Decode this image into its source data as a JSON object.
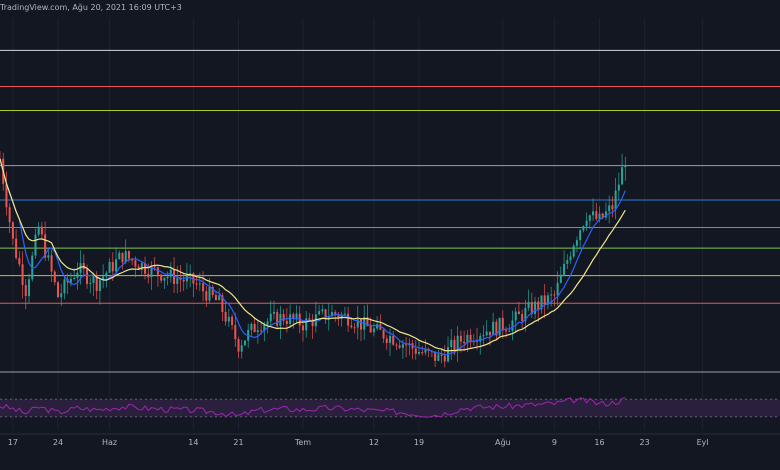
{
  "caption": "TradingView.com, Ağu 20, 2021 16:09 UTC+3",
  "colors": {
    "background": "#131722",
    "grid": "#1e2230",
    "candle_up": "#26a69a",
    "candle_down": "#ef5350",
    "ma_fast": "#2962ff",
    "ma_slow": "#f0e68c",
    "rsi_line": "#9c27b0",
    "rsi_band": "#2a1f3d"
  },
  "chart_data": {
    "type": "candlestick",
    "x_axis": {
      "tick_labels": [
        "17",
        "24",
        "Haz",
        "14",
        "21",
        "Tem",
        "12",
        "19",
        "Ağu",
        "9",
        "16",
        "23",
        "Eyl"
      ],
      "range_start": "2021-05-15",
      "range_end": "2021-09-13"
    },
    "horizontal_levels": [
      {
        "color": "#d1d4dc",
        "value": 0.935
      },
      {
        "color": "#ef5350",
        "value": 0.83
      },
      {
        "color": "#a6cc2e",
        "value": 0.76
      },
      {
        "color": "#9aa0aa",
        "value": 0.6
      },
      {
        "color": "#2f7fd6",
        "value": 0.5
      },
      {
        "color": "#1fb7a8",
        "value": 0.42
      },
      {
        "color": "#7ec84f",
        "value": 0.36
      },
      {
        "color": "#b7c43a",
        "value": 0.28
      },
      {
        "color": "#ef5350",
        "value": 0.2
      },
      {
        "color": "#9aa0aa",
        "value": 0.0
      }
    ],
    "price_path": {
      "dates": [
        "2021-05-15",
        "2021-05-17",
        "2021-05-19",
        "2021-05-21",
        "2021-05-24",
        "2021-05-27",
        "2021-05-30",
        "2021-06-03",
        "2021-06-07",
        "2021-06-10",
        "2021-06-14",
        "2021-06-18",
        "2021-06-21",
        "2021-06-24",
        "2021-06-28",
        "2021-07-01",
        "2021-07-05",
        "2021-07-08",
        "2021-07-12",
        "2021-07-15",
        "2021-07-19",
        "2021-07-22",
        "2021-07-26",
        "2021-07-29",
        "2021-08-02",
        "2021-08-05",
        "2021-08-09",
        "2021-08-12",
        "2021-08-14",
        "2021-08-16",
        "2021-08-18",
        "2021-08-20"
      ],
      "close": [
        0.62,
        0.38,
        0.24,
        0.42,
        0.22,
        0.3,
        0.26,
        0.34,
        0.3,
        0.28,
        0.26,
        0.2,
        0.08,
        0.14,
        0.16,
        0.14,
        0.17,
        0.16,
        0.12,
        0.1,
        0.06,
        0.04,
        0.1,
        0.12,
        0.14,
        0.18,
        0.22,
        0.38,
        0.46,
        0.44,
        0.48,
        0.62
      ]
    },
    "moving_averages": [
      {
        "color": "#2962ff",
        "smoothing": 3
      },
      {
        "color": "#f0e68c",
        "smoothing": 8
      }
    ],
    "rsi": {
      "upper_band": 70,
      "lower_band": 30,
      "values": [
        55,
        48,
        38,
        52,
        40,
        50,
        46,
        53,
        49,
        47,
        45,
        40,
        32,
        45,
        48,
        46,
        50,
        48,
        44,
        42,
        36,
        34,
        50,
        52,
        54,
        57,
        60,
        68,
        66,
        60,
        62,
        70
      ]
    }
  }
}
